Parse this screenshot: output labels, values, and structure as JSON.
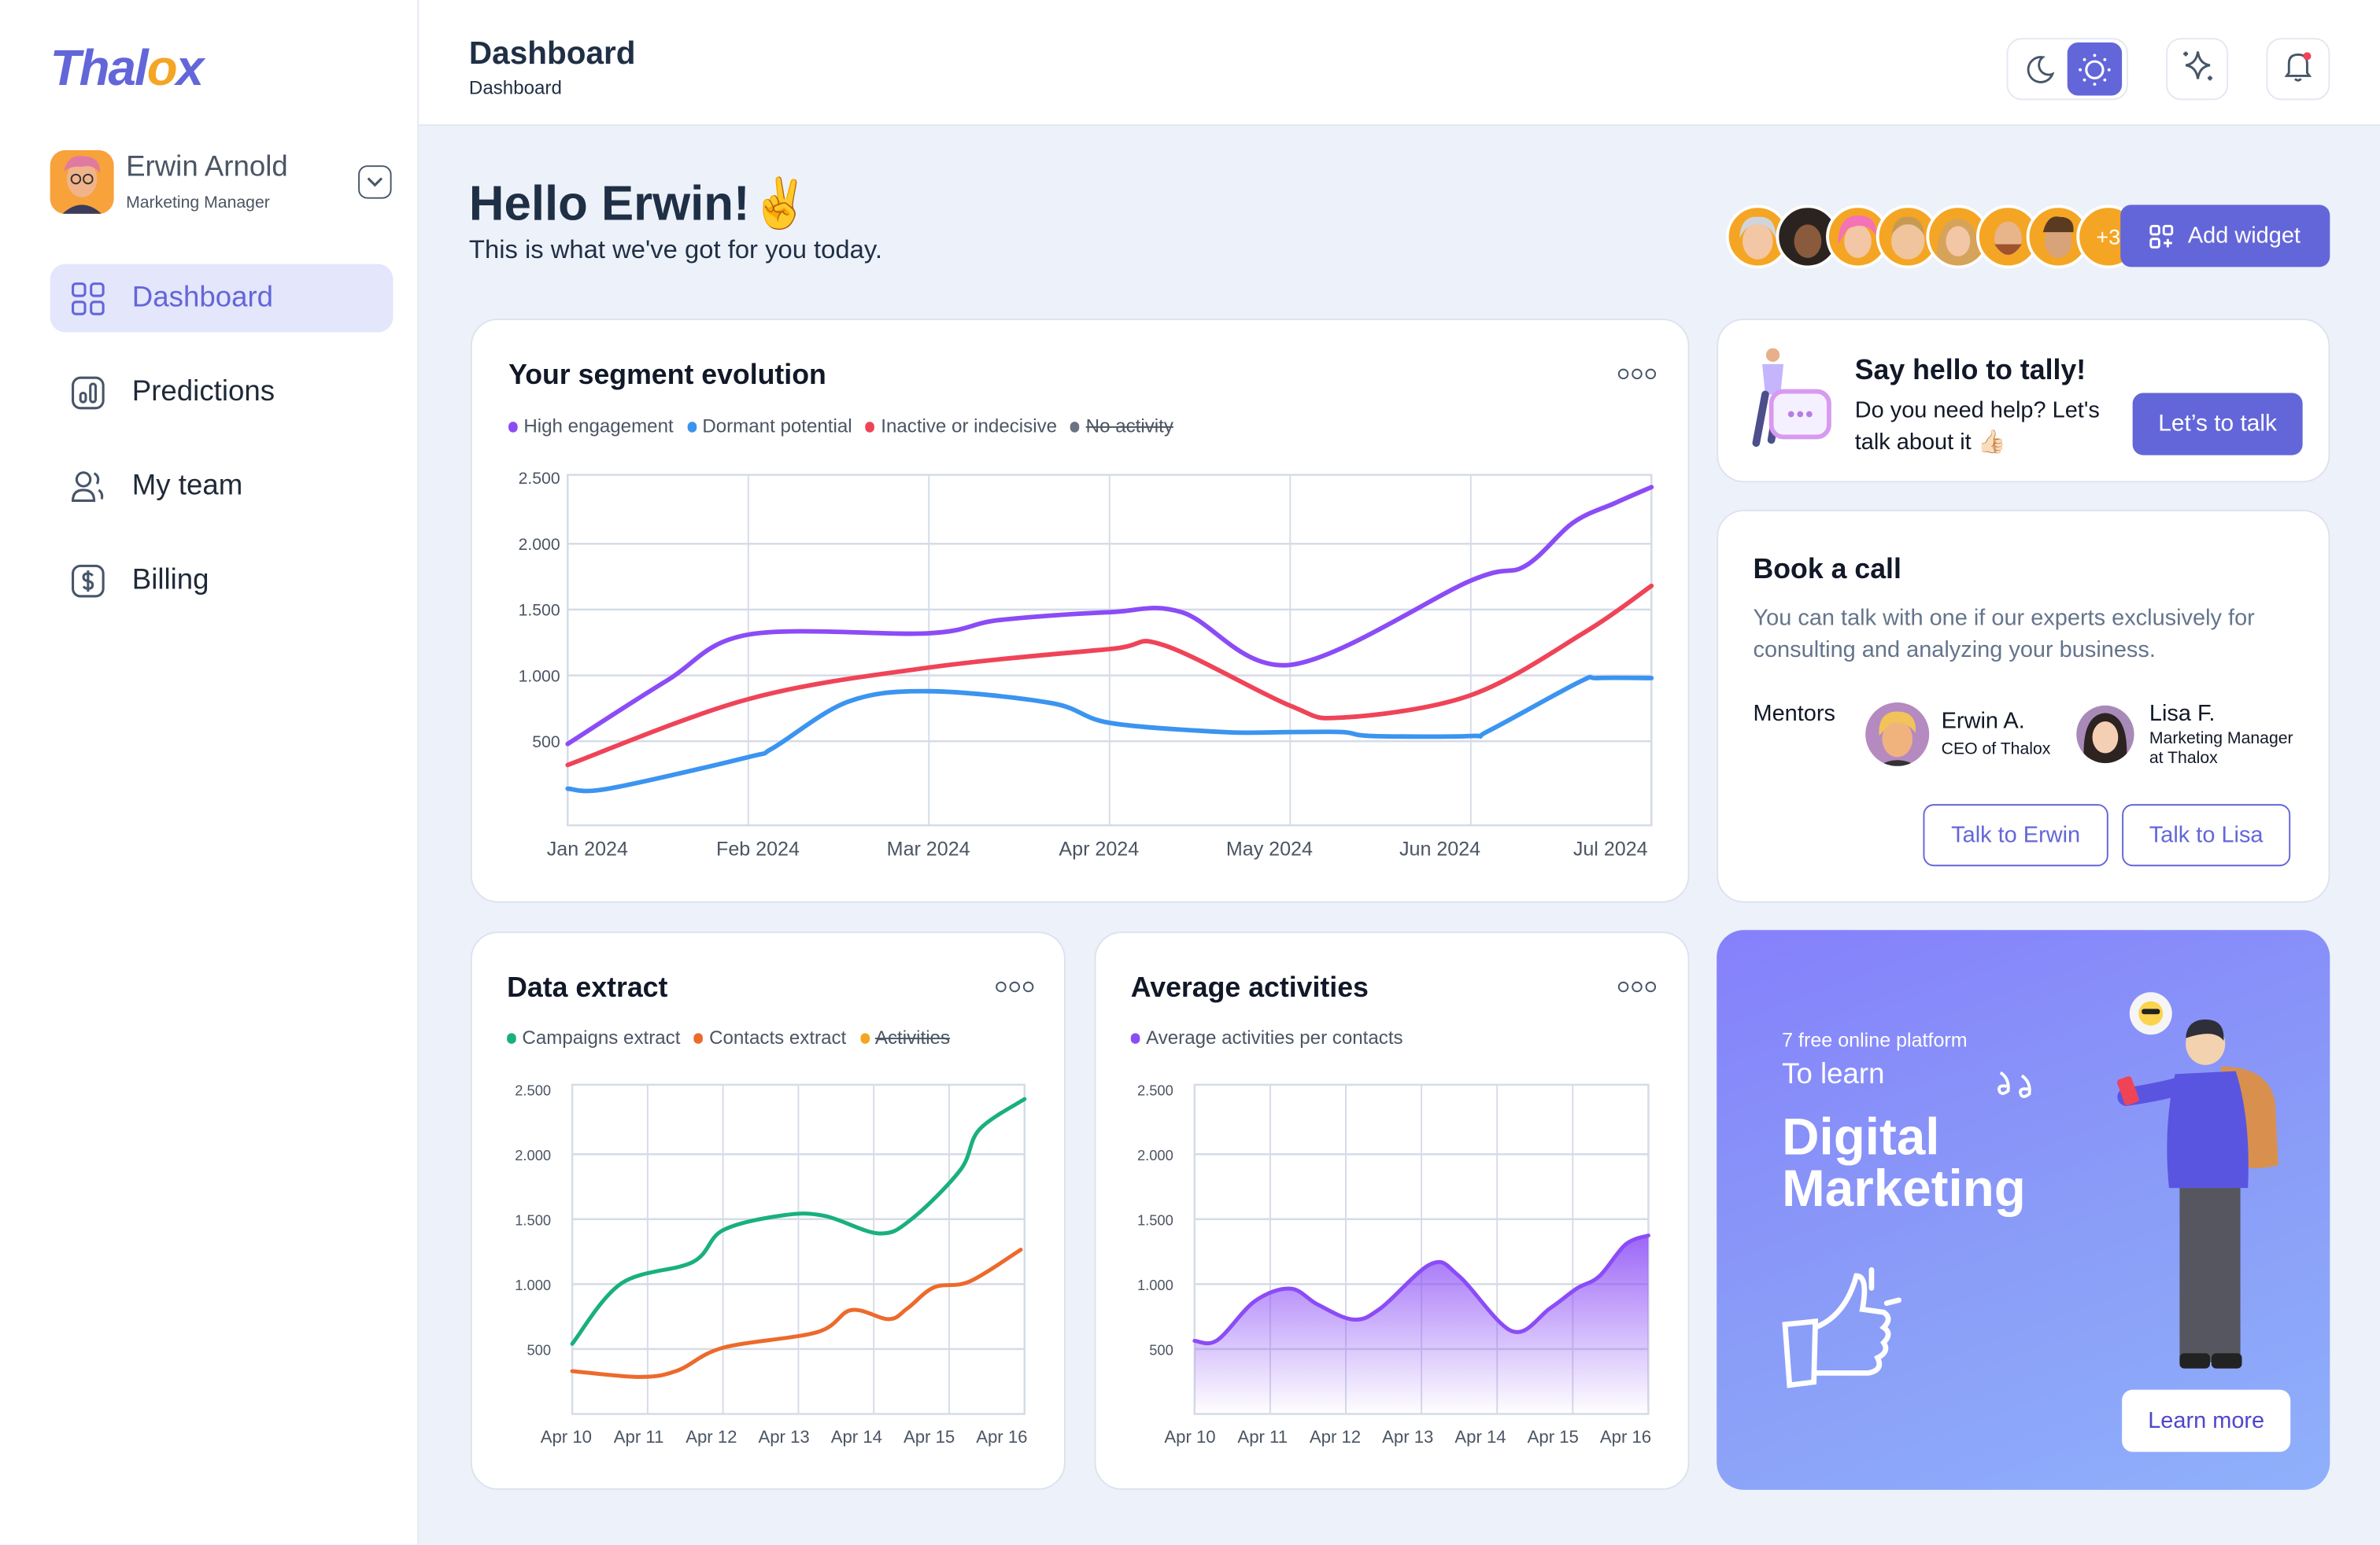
{
  "app": {
    "logo_main": "Thal",
    "logo_accent": "o",
    "logo_end": "x",
    "accent_color": "#6366d9"
  },
  "user": {
    "name": "Erwin Arnold",
    "role": "Marketing Manager"
  },
  "nav": [
    {
      "label": "Dashboard",
      "icon": "grid-icon",
      "active": true
    },
    {
      "label": "Predictions",
      "icon": "bar-chart-icon",
      "active": false
    },
    {
      "label": "My team",
      "icon": "users-icon",
      "active": false
    },
    {
      "label": "Billing",
      "icon": "dollar-icon",
      "active": false
    }
  ],
  "header": {
    "title": "Dashboard",
    "breadcrumb": "Dashboard",
    "theme": "light"
  },
  "greeting": {
    "title": "Hello Erwin!✌️",
    "subtitle": "This is what we've got for you today."
  },
  "team": {
    "extra_count": "+3"
  },
  "add_widget_label": "Add widget",
  "menu_icon": "more-dots-icon",
  "tally": {
    "title": "Say hello to tally!",
    "text": "Do you need help? Let's talk about it 👍🏻",
    "button": "Let’s to talk"
  },
  "book_call": {
    "title": "Book a call",
    "description": "You can talk with one if our experts exclusively for consulting and analyzing your business.",
    "mentors_label": "Mentors",
    "mentors": [
      {
        "name": "Erwin A.",
        "role": "CEO of Thalox",
        "button": "Talk to Erwin"
      },
      {
        "name": "Lisa F.",
        "role": "Marketing Manager at Thalox",
        "button": "Talk to Lisa"
      }
    ]
  },
  "promo": {
    "kicker": "7 free online platform",
    "lead": "To learn",
    "headline": "Digital Marketing",
    "button": "Learn more"
  },
  "chart_data": [
    {
      "type": "line",
      "title": "Your segment evolution",
      "ylim": [
        0,
        2500
      ],
      "y_ticks": [
        2500,
        2000,
        1500,
        1000,
        500
      ],
      "y_tick_labels": [
        "2.500",
        "2.000",
        "1.500",
        "1.000",
        "500"
      ],
      "x_tick_labels": [
        "Jan 2024",
        "Feb 2024",
        "Mar 2024",
        "Apr 2024",
        "May 2024",
        "Jun 2024",
        "Jul 2024"
      ],
      "grid": true,
      "legend": "top-left",
      "series": [
        {
          "name": "High engagement",
          "color": "#8b4cf6",
          "hidden": false,
          "x": [
            "2024-01-01",
            "2024-01-18",
            "2024-02-01",
            "2024-03-01",
            "2024-03-13",
            "2024-04-01",
            "2024-04-13",
            "2024-05-01",
            "2024-06-01",
            "2024-06-10",
            "2024-06-18",
            "2024-06-25",
            "2024-07-01"
          ],
          "values": [
            480,
            960,
            1310,
            1320,
            1420,
            1480,
            1480,
            1080,
            1720,
            1830,
            2160,
            2310,
            2430
          ]
        },
        {
          "name": "Dormant potential",
          "color": "#3b94f0",
          "hidden": false,
          "x": [
            "2024-01-01",
            "2024-01-08",
            "2024-02-01",
            "2024-02-05",
            "2024-02-17",
            "2024-03-01",
            "2024-03-22",
            "2024-04-01",
            "2024-04-20",
            "2024-05-01",
            "2024-05-10",
            "2024-05-15",
            "2024-06-01",
            "2024-06-04",
            "2024-06-19",
            "2024-06-22",
            "2024-07-01"
          ],
          "values": [
            140,
            140,
            380,
            450,
            800,
            880,
            790,
            640,
            570,
            570,
            570,
            540,
            540,
            580,
            950,
            980,
            980
          ]
        },
        {
          "name": "Inactive or indecisive",
          "color": "#ef4458",
          "hidden": false,
          "x": [
            "2024-01-01",
            "2024-02-01",
            "2024-03-01",
            "2024-04-01",
            "2024-04-10",
            "2024-05-01",
            "2024-05-10",
            "2024-06-01",
            "2024-06-20",
            "2024-07-01"
          ],
          "values": [
            320,
            820,
            1060,
            1200,
            1230,
            770,
            680,
            850,
            1330,
            1680
          ]
        },
        {
          "name": "No activity",
          "color": "#6b7280",
          "hidden": true,
          "x": [],
          "values": []
        }
      ]
    },
    {
      "type": "line",
      "title": "Data extract",
      "ylim": [
        0,
        2500
      ],
      "y_ticks": [
        2500,
        2000,
        1500,
        1000,
        500
      ],
      "y_tick_labels": [
        "2.500",
        "2.000",
        "1.500",
        "1.000",
        "500"
      ],
      "x_tick_labels": [
        "Apr 10",
        "Apr 11",
        "Apr 12",
        "Apr 13",
        "Apr 14",
        "Apr 15",
        "Apr 16"
      ],
      "grid": true,
      "legend": "top-left",
      "series": [
        {
          "name": "Campaigns extract",
          "color": "#19b07c",
          "hidden": false,
          "x": [
            10,
            10.65,
            11.6,
            12.0,
            12.8,
            13.35,
            14.07,
            14.5,
            15.15,
            15.4,
            16
          ],
          "values": [
            540,
            1005,
            1170,
            1415,
            1530,
            1525,
            1390,
            1500,
            1880,
            2190,
            2425
          ]
        },
        {
          "name": "Contacts extract",
          "color": "#ec6a2c",
          "hidden": false,
          "x": [
            10,
            10.9,
            11.4,
            12.0,
            13.25,
            13.7,
            14.2,
            14.45,
            14.8,
            15.27,
            15.95
          ],
          "values": [
            330,
            285,
            335,
            510,
            630,
            800,
            730,
            815,
            975,
            1020,
            1265
          ]
        },
        {
          "name": "Activities",
          "color": "#f5a524",
          "hidden": true,
          "x": [],
          "values": []
        }
      ]
    },
    {
      "type": "area",
      "title": "Average activities",
      "ylim": [
        0,
        2500
      ],
      "y_ticks": [
        2500,
        2000,
        1500,
        1000,
        500
      ],
      "y_tick_labels": [
        "2.500",
        "2.000",
        "1.500",
        "1.000",
        "500"
      ],
      "x_tick_labels": [
        "Apr 10",
        "Apr 11",
        "Apr 12",
        "Apr 13",
        "Apr 14",
        "Apr 15",
        "Apr 16"
      ],
      "grid": true,
      "legend": "top-left",
      "series": [
        {
          "name": "Average activities per contacts",
          "color": "#8b4cf6",
          "hidden": false,
          "x": [
            10,
            10.3,
            10.8,
            11.27,
            11.63,
            12.1,
            12.46,
            13.13,
            13.5,
            14.2,
            14.7,
            15.05,
            15.35,
            15.7,
            16
          ],
          "values": [
            563,
            568,
            870,
            965,
            842,
            727,
            814,
            1156,
            1060,
            637,
            814,
            965,
            1060,
            1306,
            1374
          ]
        }
      ]
    }
  ]
}
